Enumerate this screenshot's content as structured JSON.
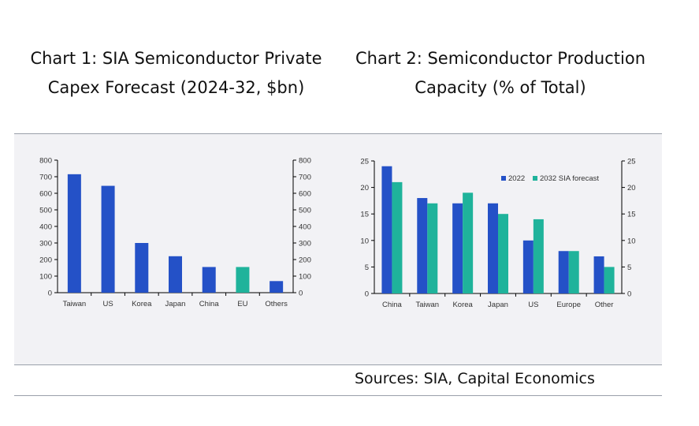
{
  "chart_data": [
    {
      "type": "bar",
      "title": "Chart 1: SIA Semiconductor Private Capex Forecast (2024-32, $bn)",
      "categories": [
        "Taiwan",
        "US",
        "Korea",
        "Japan",
        "China",
        "EU",
        "Others"
      ],
      "values": [
        715,
        645,
        300,
        220,
        155,
        155,
        70
      ],
      "colors": [
        "#2451c7",
        "#2451c7",
        "#2451c7",
        "#2451c7",
        "#2451c7",
        "#1fb39b",
        "#2451c7"
      ],
      "ylim": [
        0,
        800
      ],
      "yticks": [
        0,
        100,
        200,
        300,
        400,
        500,
        600,
        700,
        800
      ],
      "right_axis": true
    },
    {
      "type": "bar",
      "title": "Chart 2: Semiconductor Production Capacity (% of Total)",
      "categories": [
        "China",
        "Taiwan",
        "Korea",
        "Japan",
        "US",
        "Europe",
        "Other"
      ],
      "series": [
        {
          "name": "2022",
          "values": [
            24,
            18,
            17,
            17,
            10,
            8,
            7
          ],
          "color": "#2451c7"
        },
        {
          "name": "2032 SIA forecast",
          "values": [
            21,
            17,
            19,
            15,
            14,
            8,
            5
          ],
          "color": "#1fb39b"
        }
      ],
      "ylim": [
        0,
        25
      ],
      "yticks": [
        0,
        5,
        10,
        15,
        20,
        25
      ],
      "right_axis": true,
      "legend": "top-right"
    }
  ],
  "sources": "Sources: SIA, Capital Economics"
}
